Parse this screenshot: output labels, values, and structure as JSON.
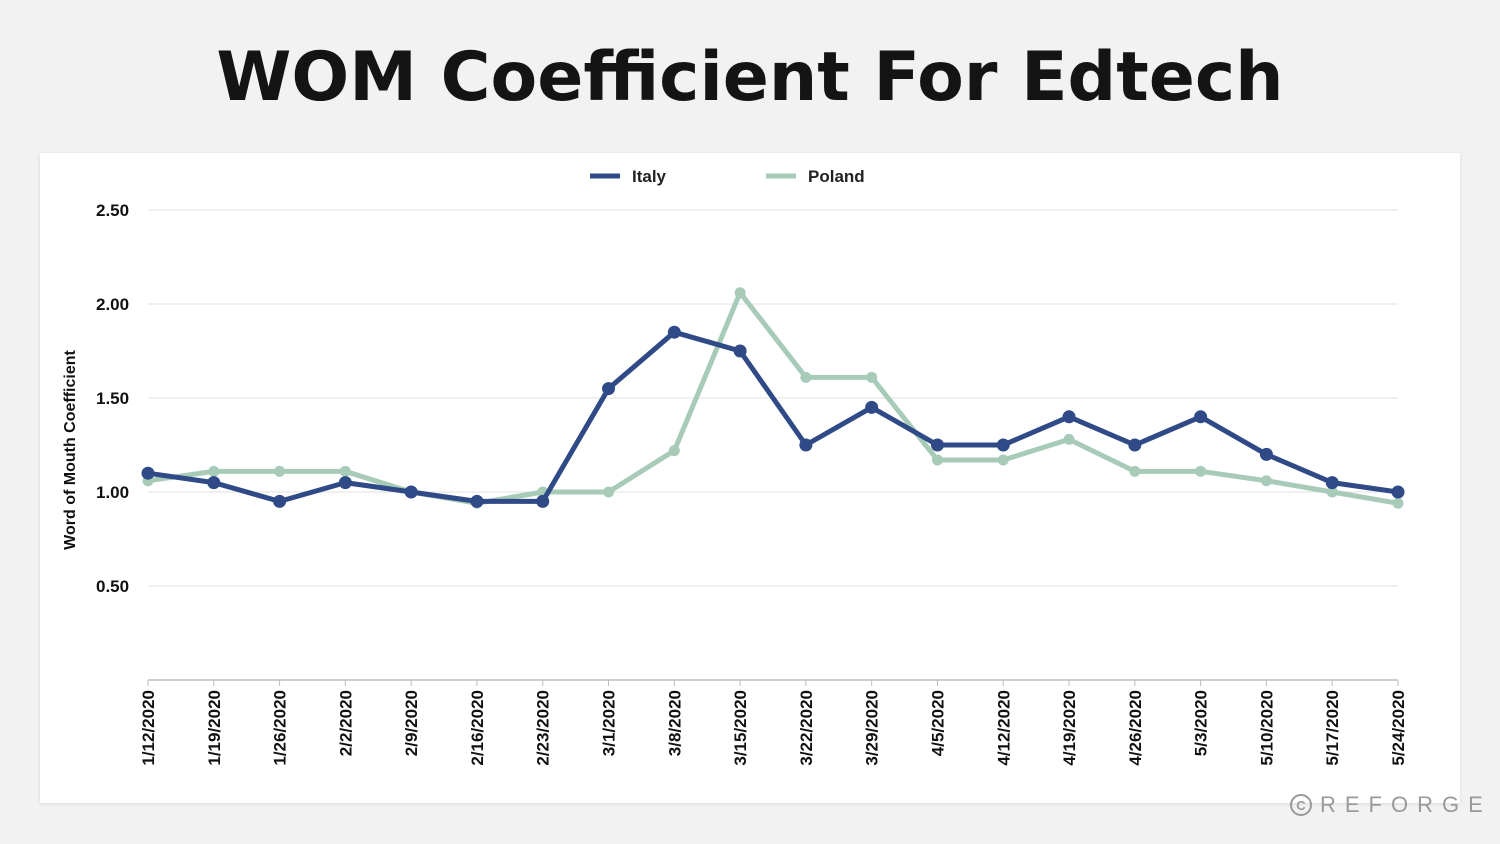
{
  "title": "WOM Coefficient For Edtech",
  "watermark": {
    "symbol": "C",
    "text": "REFORGE"
  },
  "colors": {
    "italy": "#2f4a86",
    "poland": "#a7cbb7",
    "grid": "#e2e2e2",
    "text": "#111111"
  },
  "chart_data": {
    "type": "line",
    "title": "WOM Coefficient For Edtech",
    "xlabel": "",
    "ylabel": "Word of Mouth Coefficient",
    "ylim": [
      0,
      2.5
    ],
    "yticks": [
      0.5,
      1.0,
      1.5,
      2.0,
      2.5
    ],
    "ytick_labels": [
      "0.50",
      "1.00",
      "1.50",
      "2.00",
      "2.50"
    ],
    "legend_position": "top-center",
    "grid": true,
    "categories": [
      "1/12/2020",
      "1/19/2020",
      "1/26/2020",
      "2/2/2020",
      "2/9/2020",
      "2/16/2020",
      "2/23/2020",
      "3/1/2020",
      "3/8/2020",
      "3/15/2020",
      "3/22/2020",
      "3/29/2020",
      "4/5/2020",
      "4/12/2020",
      "4/19/2020",
      "4/26/2020",
      "5/3/2020",
      "5/10/2020",
      "5/17/2020",
      "5/24/2020"
    ],
    "series": [
      {
        "name": "Italy",
        "color": "#2f4a86",
        "values": [
          1.1,
          1.05,
          0.95,
          1.05,
          1.0,
          0.95,
          0.95,
          1.55,
          1.85,
          1.75,
          1.25,
          1.45,
          1.25,
          1.25,
          1.4,
          1.25,
          1.4,
          1.2,
          1.05,
          1.0
        ]
      },
      {
        "name": "Poland",
        "color": "#a7cbb7",
        "values": [
          1.06,
          1.11,
          1.11,
          1.11,
          1.0,
          0.94,
          1.0,
          1.0,
          1.22,
          2.06,
          1.61,
          1.61,
          1.17,
          1.17,
          1.28,
          1.11,
          1.11,
          1.06,
          1.0,
          0.94
        ]
      }
    ]
  }
}
